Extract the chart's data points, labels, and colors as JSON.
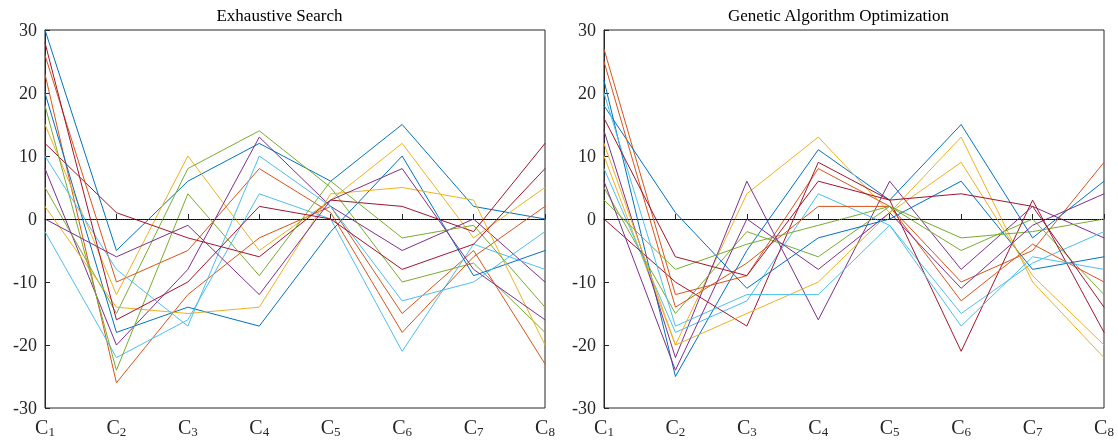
{
  "chart_data": [
    {
      "type": "line",
      "title": "Exhaustive Search",
      "categories": [
        "C$_{1}$",
        "C$_{2}$",
        "C$_{3}$",
        "C$_{4}$",
        "C$_{5}$",
        "C$_{6}$",
        "C$_{7}$",
        "C$_{8}$"
      ],
      "ylim": [
        -30,
        30
      ],
      "yticks": [
        -30,
        -20,
        -10,
        0,
        10,
        20,
        30
      ],
      "grid": false,
      "marker": "none",
      "ref_lines": [
        {
          "axis": "y",
          "value": 0,
          "color": "#000000",
          "line_style": "dotted"
        }
      ],
      "series": [
        {
          "color": "#0072bd",
          "values": [
            30,
            -5,
            6,
            12,
            6,
            15,
            2,
            0
          ]
        },
        {
          "color": "#d95319",
          "values": [
            23,
            -26,
            -12,
            -3,
            2,
            -15,
            -5,
            -23
          ]
        },
        {
          "color": "#edb120",
          "values": [
            15,
            -12,
            10,
            -5,
            3,
            12,
            -3,
            5
          ]
        },
        {
          "color": "#7e2f8e",
          "values": [
            8,
            -20,
            -8,
            13,
            2,
            -5,
            0,
            -10
          ]
        },
        {
          "color": "#77ac30",
          "values": [
            5,
            -15,
            8,
            14,
            5,
            -10,
            -7,
            -18
          ]
        },
        {
          "color": "#4dbeee",
          "values": [
            -2,
            -22,
            -16,
            4,
            0,
            -21,
            -4,
            -8
          ]
        },
        {
          "color": "#a2142f",
          "values": [
            12,
            1,
            -3,
            -6,
            3,
            2,
            -2,
            12
          ]
        },
        {
          "color": "#0072bd",
          "values": [
            20,
            -18,
            -14,
            -17,
            -2,
            10,
            -9,
            -5
          ]
        },
        {
          "color": "#d95319",
          "values": [
            26,
            -10,
            -5,
            8,
            1,
            -18,
            -6,
            2
          ]
        },
        {
          "color": "#edb120",
          "values": [
            2,
            -14,
            -15,
            -14,
            4,
            5,
            3,
            -20
          ]
        },
        {
          "color": "#77ac30",
          "values": [
            18,
            -24,
            4,
            -9,
            6,
            -3,
            -1,
            -14
          ]
        },
        {
          "color": "#4dbeee",
          "values": [
            10,
            -8,
            -17,
            10,
            2,
            -13,
            -10,
            -2
          ]
        },
        {
          "color": "#a2142f",
          "values": [
            28,
            -16,
            -10,
            2,
            0,
            -8,
            -4,
            8
          ]
        },
        {
          "color": "#7e2f8e",
          "values": [
            0,
            -6,
            -1,
            -12,
            3,
            8,
            -8,
            -16
          ]
        }
      ]
    },
    {
      "type": "line",
      "title": "Genetic Algorithm Optimization",
      "categories": [
        "C$_{1}$",
        "C$_{2}$",
        "C$_{3}$",
        "C$_{4}$",
        "C$_{5}$",
        "C$_{6}$",
        "C$_{7}$",
        "C$_{8}$"
      ],
      "ylim": [
        -30,
        30
      ],
      "yticks": [
        -30,
        -20,
        -10,
        0,
        10,
        20,
        30
      ],
      "grid": false,
      "marker": "none",
      "ref_lines": [
        {
          "axis": "y",
          "value": 0,
          "color": "#000000",
          "line_style": "dotted"
        }
      ],
      "series": [
        {
          "color": "#0072bd",
          "values": [
            22,
            -25,
            -5,
            11,
            3,
            15,
            -3,
            6
          ]
        },
        {
          "color": "#d95319",
          "values": [
            27,
            -12,
            -9,
            8,
            2,
            -10,
            -5,
            9
          ]
        },
        {
          "color": "#edb120",
          "values": [
            10,
            -20,
            4,
            13,
            1,
            13,
            -10,
            -22
          ]
        },
        {
          "color": "#7e2f8e",
          "values": [
            14,
            -22,
            6,
            -16,
            6,
            -8,
            2,
            -3
          ]
        },
        {
          "color": "#77ac30",
          "values": [
            5,
            -15,
            -2,
            -6,
            2,
            -5,
            0,
            -12
          ]
        },
        {
          "color": "#4dbeee",
          "values": [
            8,
            -18,
            -13,
            4,
            -1,
            -15,
            -7,
            -2
          ]
        },
        {
          "color": "#a2142f",
          "values": [
            0,
            -10,
            -17,
            9,
            3,
            -21,
            3,
            -18
          ]
        },
        {
          "color": "#0072bd",
          "values": [
            18,
            1,
            -11,
            -3,
            0,
            6,
            -8,
            -6
          ]
        },
        {
          "color": "#d95319",
          "values": [
            25,
            -14,
            -7,
            2,
            2,
            -13,
            -4,
            -10
          ]
        },
        {
          "color": "#edb120",
          "values": [
            12,
            -20,
            -15,
            -10,
            1,
            9,
            -9,
            -20
          ]
        },
        {
          "color": "#77ac30",
          "values": [
            3,
            -8,
            -4,
            -1,
            2,
            -3,
            -2,
            0
          ]
        },
        {
          "color": "#4dbeee",
          "values": [
            20,
            -17,
            -12,
            -12,
            -1,
            -17,
            -6,
            -8
          ]
        },
        {
          "color": "#a2142f",
          "values": [
            16,
            -6,
            -9,
            6,
            3,
            4,
            2,
            -14
          ]
        },
        {
          "color": "#7e2f8e",
          "values": [
            6,
            -24,
            0,
            -8,
            1,
            -11,
            -1,
            4
          ]
        }
      ]
    }
  ]
}
